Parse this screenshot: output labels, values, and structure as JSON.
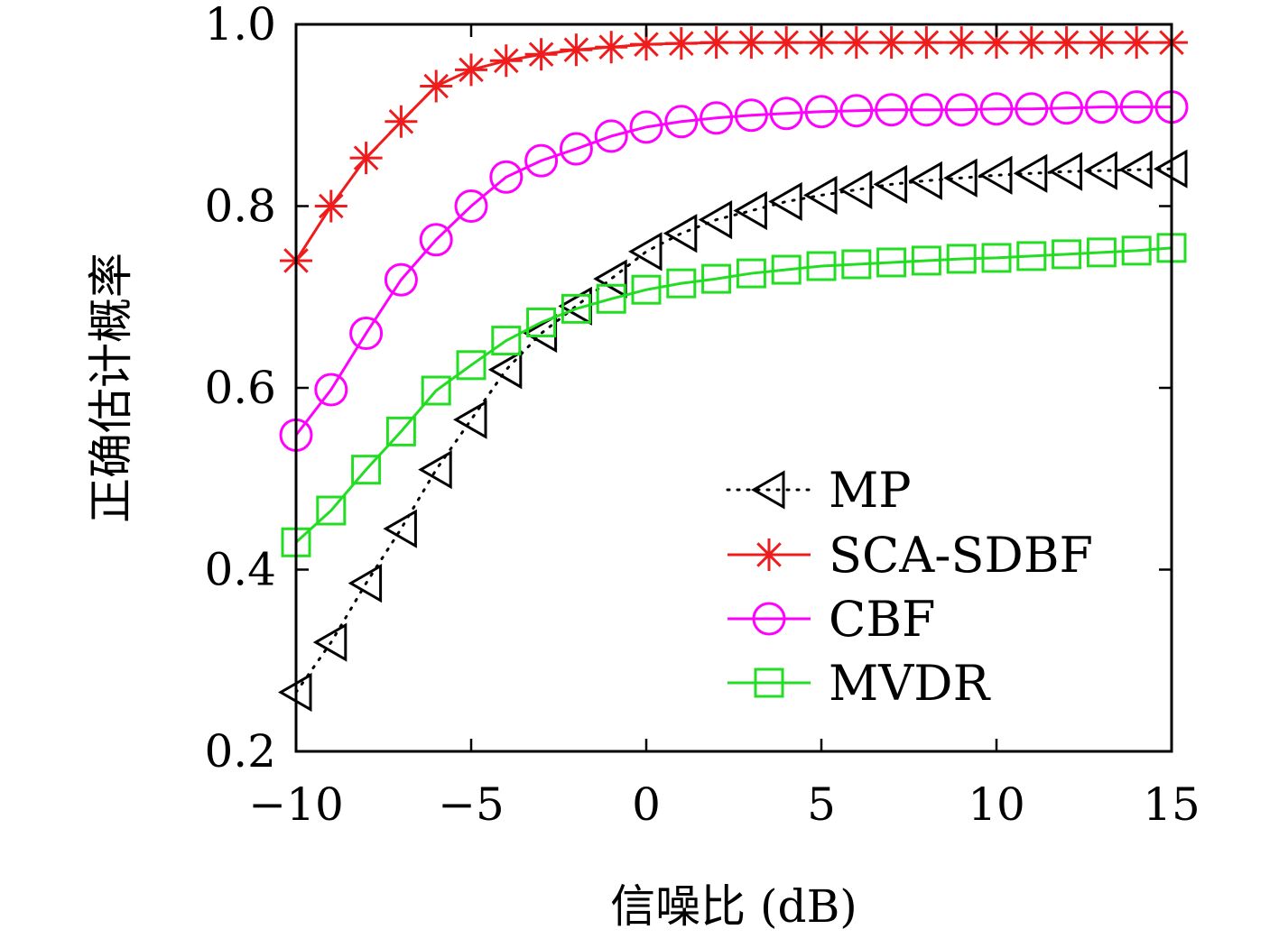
{
  "chart_data": {
    "type": "line",
    "xlabel": "信噪比 (dB)",
    "ylabel": "正确估计概率",
    "xlim": [
      -10,
      15
    ],
    "ylim": [
      0.2,
      1.0
    ],
    "xticks": [
      -10,
      -5,
      0,
      5,
      10,
      15
    ],
    "xtick_labels": [
      "−10",
      "−5",
      "0",
      "5",
      "10",
      "15"
    ],
    "yticks": [
      0.2,
      0.4,
      0.6,
      0.8,
      1.0
    ],
    "ytick_labels": [
      "0.2",
      "0.4",
      "0.6",
      "0.8",
      "1.0"
    ],
    "grid": false,
    "legend_position": "lower-right",
    "x": [
      -10,
      -9,
      -8,
      -7,
      -6,
      -5,
      -4,
      -3,
      -2,
      -1,
      0,
      1,
      2,
      3,
      4,
      5,
      6,
      7,
      8,
      9,
      10,
      11,
      12,
      13,
      14,
      15
    ],
    "series": [
      {
        "name": "MP",
        "color": "#000000",
        "marker": "triangle-left",
        "linestyle": "dotted",
        "values": [
          0.265,
          0.32,
          0.385,
          0.445,
          0.51,
          0.565,
          0.62,
          0.66,
          0.69,
          0.72,
          0.75,
          0.77,
          0.785,
          0.795,
          0.805,
          0.812,
          0.818,
          0.824,
          0.828,
          0.831,
          0.834,
          0.836,
          0.838,
          0.839,
          0.84,
          0.841
        ]
      },
      {
        "name": "SCA-SDBF",
        "color": "#ee1c1c",
        "marker": "asterisk",
        "linestyle": "solid",
        "values": [
          0.74,
          0.8,
          0.853,
          0.893,
          0.932,
          0.95,
          0.96,
          0.967,
          0.972,
          0.975,
          0.978,
          0.979,
          0.98,
          0.98,
          0.98,
          0.98,
          0.98,
          0.98,
          0.98,
          0.98,
          0.98,
          0.98,
          0.98,
          0.98,
          0.98,
          0.98
        ]
      },
      {
        "name": "CBF",
        "color": "#ff00ff",
        "marker": "circle",
        "linestyle": "solid",
        "values": [
          0.548,
          0.598,
          0.66,
          0.719,
          0.763,
          0.8,
          0.832,
          0.85,
          0.863,
          0.877,
          0.887,
          0.893,
          0.897,
          0.9,
          0.902,
          0.904,
          0.905,
          0.906,
          0.906,
          0.906,
          0.907,
          0.907,
          0.908,
          0.909,
          0.909,
          0.909
        ]
      },
      {
        "name": "MVDR",
        "color": "#22dd22",
        "marker": "square",
        "linestyle": "solid",
        "values": [
          0.43,
          0.465,
          0.51,
          0.552,
          0.597,
          0.625,
          0.652,
          0.672,
          0.687,
          0.698,
          0.708,
          0.715,
          0.72,
          0.726,
          0.73,
          0.734,
          0.736,
          0.738,
          0.74,
          0.742,
          0.743,
          0.745,
          0.747,
          0.749,
          0.751,
          0.754
        ]
      }
    ]
  }
}
